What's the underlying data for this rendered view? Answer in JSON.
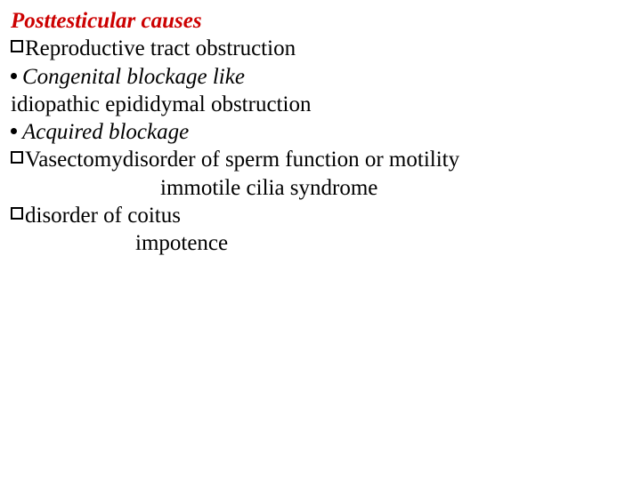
{
  "title": {
    "text": "Posttesticular causes",
    "color": "#cc0000",
    "fontStyle": "italic",
    "fontWeight": "bold",
    "fontSize": 25
  },
  "lines": [
    {
      "bullet": "box",
      "text": "Reproductive tract obstruction",
      "italic": false,
      "fontSize": 25
    },
    {
      "bullet": "dot",
      "text": "Congenital blockage like",
      "italic": true,
      "fontSize": 25
    },
    {
      "bullet": "none",
      "text": "idiopathic epididymal obstruction",
      "italic": false,
      "fontSize": 25
    },
    {
      "bullet": "dot",
      "text": "Acquired blockage",
      "italic": true,
      "fontSize": 25
    },
    {
      "bullet": "box",
      "text": "Vasectomydisorder of sperm function or motility",
      "italic": false,
      "fontSize": 25
    },
    {
      "bullet": "none",
      "text": "immotile cilia syndrome",
      "italic": false,
      "indent": "indent",
      "fontSize": 25
    },
    {
      "bullet": "box",
      "text": "disorder of coitus",
      "italic": false,
      "fontSize": 25
    },
    {
      "bullet": "none",
      "text": "impotence",
      "italic": false,
      "indent": "indent2",
      "fontSize": 25
    }
  ],
  "colors": {
    "text": "#000000",
    "background": "#ffffff"
  }
}
